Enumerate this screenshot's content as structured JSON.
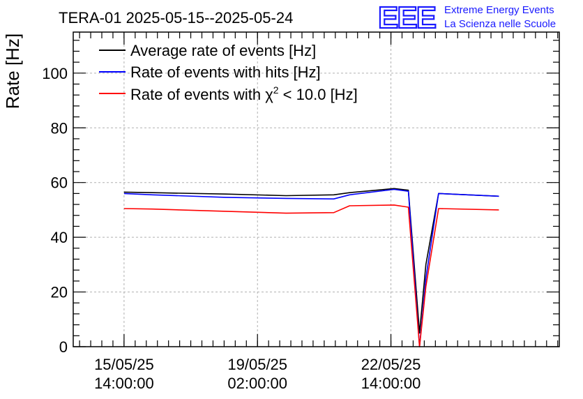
{
  "header": {
    "title": "TERA-01 2025-05-15--2025-05-24",
    "brand_mark": "EEE",
    "brand_line1": "Extreme Energy Events",
    "brand_line2": "La Scienza nelle Scuole"
  },
  "chart_data": {
    "type": "line",
    "title": "TERA-01 2025-05-15--2025-05-24",
    "ylabel": "Rate [Hz]",
    "xlabel": "",
    "ylim": [
      0,
      115
    ],
    "yticks": [
      0,
      20,
      40,
      60,
      80,
      100
    ],
    "xlim": [
      "2025-05-14 06:00",
      "2025-05-27 00:00"
    ],
    "xticks": [
      {
        "t": "2025-05-15 14:00",
        "date": "15/05/25",
        "time": "14:00:00"
      },
      {
        "t": "2025-05-19 02:00",
        "date": "19/05/25",
        "time": "02:00:00"
      },
      {
        "t": "2025-05-22 14:00",
        "date": "22/05/25",
        "time": "14:00:00"
      }
    ],
    "grid": true,
    "legend_position": "top-left",
    "series": [
      {
        "name": "Average rate of events [Hz]",
        "color": "#000000",
        "points": [
          [
            "2025-05-15 14:00",
            56.5
          ],
          [
            "2025-05-16 08:00",
            56.3
          ],
          [
            "2025-05-18 06:00",
            55.8
          ],
          [
            "2025-05-19 20:00",
            55.2
          ],
          [
            "2025-05-21 02:00",
            55.5
          ],
          [
            "2025-05-21 12:00",
            56.3
          ],
          [
            "2025-05-22 16:00",
            57.8
          ],
          [
            "2025-05-23 01:00",
            57.2
          ],
          [
            "2025-05-23 08:00",
            5.0
          ],
          [
            "2025-05-23 12:00",
            30.0
          ],
          [
            "2025-05-23 20:00",
            56.0
          ],
          [
            "2025-05-25 10:00",
            55.0
          ]
        ]
      },
      {
        "name": "Rate of events with hits [Hz]",
        "color": "#0000ff",
        "points": [
          [
            "2025-05-15 14:00",
            56.0
          ],
          [
            "2025-05-16 08:00",
            55.5
          ],
          [
            "2025-05-18 06:00",
            54.6
          ],
          [
            "2025-05-19 20:00",
            54.2
          ],
          [
            "2025-05-21 02:00",
            54.0
          ],
          [
            "2025-05-21 12:00",
            55.5
          ],
          [
            "2025-05-22 16:00",
            57.5
          ],
          [
            "2025-05-23 01:00",
            56.8
          ],
          [
            "2025-05-23 08:00",
            0.0
          ],
          [
            "2025-05-23 12:00",
            25.0
          ],
          [
            "2025-05-23 20:00",
            56.0
          ],
          [
            "2025-05-25 10:00",
            55.0
          ]
        ]
      },
      {
        "name": "Rate of events with χ² < 10.0 [Hz]",
        "color": "#ff0000",
        "points": [
          [
            "2025-05-15 14:00",
            50.5
          ],
          [
            "2025-05-16 08:00",
            50.3
          ],
          [
            "2025-05-18 06:00",
            49.5
          ],
          [
            "2025-05-19 20:00",
            48.8
          ],
          [
            "2025-05-21 02:00",
            49.0
          ],
          [
            "2025-05-21 12:00",
            51.5
          ],
          [
            "2025-05-22 16:00",
            51.8
          ],
          [
            "2025-05-23 01:00",
            51.0
          ],
          [
            "2025-05-23 08:00",
            0.0
          ],
          [
            "2025-05-23 12:00",
            22.0
          ],
          [
            "2025-05-23 20:00",
            50.5
          ],
          [
            "2025-05-25 10:00",
            50.0
          ]
        ]
      }
    ],
    "legend": [
      {
        "label": "Average rate of events [Hz]",
        "color": "#000000"
      },
      {
        "label": "Rate of events with hits [Hz]",
        "color": "#0000ff"
      },
      {
        "label_main": "Rate of events with χ",
        "label_sup": "2",
        "label_rest": " < 10.0 [Hz]",
        "color": "#ff0000"
      }
    ]
  }
}
